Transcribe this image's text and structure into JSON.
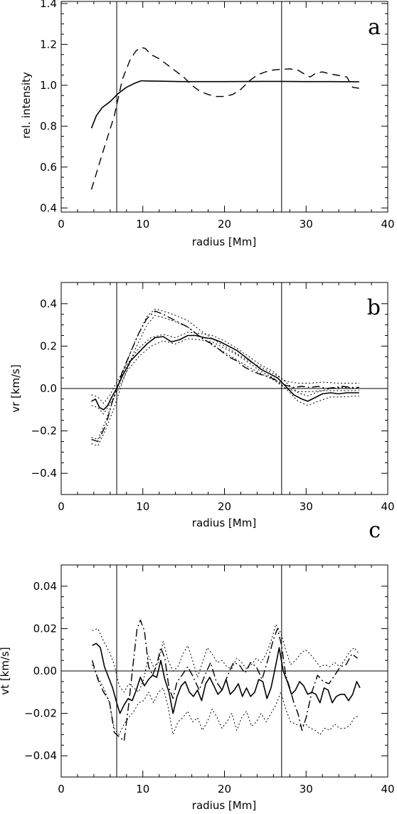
{
  "chart_data": [
    {
      "type": "line",
      "panel_label": "a",
      "xlabel": "radius [Mm]",
      "ylabel": "rel. intensity",
      "xlim": [
        0,
        40
      ],
      "ylim": [
        0.38,
        1.41
      ],
      "xticks": [
        "0",
        "10",
        "20",
        "30",
        "40"
      ],
      "yticks": [
        "0.4",
        "0.6",
        "0.8",
        "1.0",
        "1.2",
        "1.4"
      ],
      "xtick_values": [
        0,
        10,
        20,
        30,
        40
      ],
      "ytick_values": [
        0.4,
        0.6,
        0.8,
        1.0,
        1.2,
        1.4
      ],
      "vlines": [
        6.8,
        27.0
      ],
      "hline": null,
      "series": [
        {
          "style": "solid",
          "x": [
            3.7,
            4.3,
            5,
            6,
            7,
            8,
            9,
            9.8,
            10.5,
            12,
            15,
            20,
            25,
            27,
            30,
            33,
            36.5
          ],
          "y": [
            0.79,
            0.85,
            0.89,
            0.92,
            0.96,
            0.99,
            1.01,
            1.022,
            1.021,
            1.02,
            1.018,
            1.018,
            1.019,
            1.019,
            1.018,
            1.018,
            1.017
          ]
        },
        {
          "style": "dashed",
          "x": [
            3.7,
            5,
            6.5,
            7.5,
            8.5,
            9.2,
            9.8,
            10.3,
            11,
            12,
            13,
            14,
            15,
            16,
            17,
            18,
            19,
            20,
            21,
            22,
            23,
            24,
            25,
            26,
            27,
            28,
            29,
            30,
            30.5,
            31.2,
            32,
            33,
            34,
            35,
            35.7,
            36.5
          ],
          "y": [
            0.49,
            0.66,
            0.85,
            1.03,
            1.13,
            1.17,
            1.185,
            1.18,
            1.15,
            1.13,
            1.1,
            1.07,
            1.04,
            1.0,
            0.97,
            0.955,
            0.945,
            0.945,
            0.955,
            0.98,
            1.02,
            1.05,
            1.065,
            1.075,
            1.078,
            1.08,
            1.074,
            1.05,
            1.04,
            1.06,
            1.065,
            1.055,
            1.048,
            1.04,
            0.99,
            0.985
          ]
        }
      ]
    },
    {
      "type": "line",
      "panel_label": "b",
      "xlabel": "radius [Mm]",
      "ylabel": "vr [km/s]",
      "xlim": [
        0,
        40
      ],
      "ylim": [
        -0.5,
        0.5
      ],
      "xticks": [
        "0",
        "10",
        "20",
        "30",
        "40"
      ],
      "yticks": [
        "−0.4",
        "−0.2",
        "0.0",
        "0.2",
        "0.4"
      ],
      "xtick_values": [
        0,
        10,
        20,
        30,
        40
      ],
      "ytick_values": [
        -0.4,
        -0.2,
        0.0,
        0.2,
        0.4
      ],
      "vlines": [
        6.8,
        27.0
      ],
      "hline": 0,
      "series": [
        {
          "style": "solid",
          "x": [
            3.7,
            4.2,
            4.7,
            5.2,
            5.7,
            6.2,
            6.8,
            7.5,
            8.5,
            9.5,
            10.5,
            11.5,
            12.5,
            13.5,
            14.5,
            15.5,
            16.5,
            17.5,
            18.5,
            19.5,
            20.5,
            21.5,
            22.5,
            23.5,
            24.5,
            25.5,
            26.5,
            27.5,
            28.5,
            29.5,
            30.2,
            31,
            32,
            33,
            34,
            35,
            36.5
          ],
          "y": [
            -0.06,
            -0.05,
            -0.09,
            -0.1,
            -0.08,
            -0.04,
            0.0,
            0.06,
            0.13,
            0.17,
            0.21,
            0.24,
            0.245,
            0.22,
            0.23,
            0.25,
            0.25,
            0.24,
            0.235,
            0.22,
            0.2,
            0.18,
            0.15,
            0.12,
            0.09,
            0.07,
            0.05,
            0.01,
            -0.03,
            -0.05,
            -0.06,
            -0.045,
            -0.025,
            -0.02,
            -0.025,
            -0.02,
            -0.02
          ]
        },
        {
          "style": "dash-dot",
          "x": [
            3.7,
            4.5,
            5.5,
            6.2,
            6.8,
            7.5,
            8.5,
            9.5,
            10.5,
            11.5,
            12.5,
            13.5,
            14.5,
            15.5,
            16.5,
            17.5,
            18.5,
            19.5,
            20.5,
            21.5,
            22.5,
            23.5,
            24.5,
            25.5,
            26.5,
            27.5,
            28.5,
            29.5,
            30.5,
            31.5,
            32.5,
            33.5,
            34.5,
            35.5,
            36.5
          ],
          "y": [
            -0.24,
            -0.25,
            -0.17,
            -0.07,
            0.0,
            0.08,
            0.17,
            0.26,
            0.33,
            0.365,
            0.35,
            0.33,
            0.31,
            0.29,
            0.26,
            0.23,
            0.21,
            0.18,
            0.15,
            0.13,
            0.1,
            0.08,
            0.065,
            0.055,
            0.035,
            0.015,
            0.005,
            0.01,
            0.005,
            0.01,
            0.0,
            0.005,
            0.01,
            0.005,
            0.005
          ]
        },
        {
          "style": "dotted",
          "x": [
            3.7,
            4.5,
            5.2,
            6,
            6.8,
            8,
            9.5,
            11,
            12.5,
            14,
            15.5,
            17,
            18.5,
            20,
            21.5,
            23,
            24.5,
            26,
            27.5,
            29,
            30.2,
            31.5,
            33,
            34.5,
            36.5
          ],
          "y": [
            -0.03,
            -0.04,
            -0.07,
            -0.03,
            0.03,
            0.11,
            0.19,
            0.24,
            0.255,
            0.24,
            0.265,
            0.26,
            0.25,
            0.225,
            0.19,
            0.15,
            0.11,
            0.08,
            0.03,
            -0.02,
            -0.035,
            -0.015,
            0.0,
            0.005,
            0.0
          ]
        },
        {
          "style": "dotted",
          "x": [
            3.7,
            4.5,
            5.2,
            6,
            6.8,
            8,
            9.5,
            11,
            12.5,
            14,
            15.5,
            17,
            18.5,
            20,
            21.5,
            23,
            24.5,
            26,
            27.5,
            29,
            30.2,
            31.5,
            33,
            34.5,
            36.5
          ],
          "y": [
            -0.08,
            -0.09,
            -0.12,
            -0.07,
            -0.02,
            0.08,
            0.15,
            0.2,
            0.225,
            0.21,
            0.235,
            0.23,
            0.22,
            0.19,
            0.16,
            0.12,
            0.08,
            0.05,
            0.0,
            -0.06,
            -0.08,
            -0.06,
            -0.04,
            -0.04,
            -0.035
          ]
        },
        {
          "style": "dotted",
          "x": [
            3.7,
            4.5,
            5.5,
            6.5,
            7.5,
            9,
            10.5,
            11.5,
            12.5,
            14,
            15.5,
            17,
            18.5,
            20,
            21.5,
            23,
            24.5,
            26,
            27.5,
            29,
            30.5,
            32,
            34,
            36.5
          ],
          "y": [
            -0.23,
            -0.24,
            -0.15,
            -0.04,
            0.07,
            0.22,
            0.34,
            0.375,
            0.365,
            0.345,
            0.32,
            0.275,
            0.235,
            0.2,
            0.165,
            0.13,
            0.1,
            0.07,
            0.035,
            0.025,
            0.025,
            0.03,
            0.025,
            0.025
          ]
        },
        {
          "style": "dotted",
          "x": [
            3.7,
            4.5,
            5.5,
            6.5,
            7.5,
            9,
            10.5,
            11.5,
            12.5,
            14,
            15.5,
            17,
            18.5,
            20,
            21.5,
            23,
            24.5,
            26,
            27.5,
            29,
            30.5,
            32,
            34,
            36.5
          ],
          "y": [
            -0.26,
            -0.27,
            -0.19,
            -0.09,
            0.03,
            0.18,
            0.3,
            0.345,
            0.335,
            0.315,
            0.29,
            0.245,
            0.205,
            0.17,
            0.135,
            0.1,
            0.07,
            0.04,
            0.0,
            -0.015,
            -0.015,
            -0.01,
            -0.01,
            -0.01
          ]
        }
      ]
    },
    {
      "type": "line",
      "panel_label": "c",
      "xlabel": "radius [Mm]",
      "ylabel": "vt [km/s]",
      "xlim": [
        0,
        40
      ],
      "ylim": [
        -0.05,
        0.05
      ],
      "xticks": [
        "0",
        "10",
        "20",
        "30",
        "40"
      ],
      "yticks": [
        "−0.04",
        "−0.02",
        "0.00",
        "0.02",
        "0.04"
      ],
      "xtick_values": [
        0,
        10,
        20,
        30,
        40
      ],
      "ytick_values": [
        -0.04,
        -0.02,
        0.0,
        0.02,
        0.04
      ],
      "vlines": [
        6.8,
        27.0
      ],
      "hline": 0,
      "series": [
        {
          "style": "solid",
          "x": [
            3.8,
            4.3,
            4.8,
            5.3,
            5.8,
            6.3,
            6.8,
            7.2,
            7.7,
            8.2,
            8.7,
            9.2,
            9.7,
            10.2,
            10.7,
            11.2,
            11.7,
            12.2,
            12.7,
            13.2,
            13.7,
            14.2,
            14.7,
            15.2,
            15.7,
            16.2,
            16.7,
            17.2,
            17.7,
            18.2,
            18.7,
            19.2,
            19.7,
            20.2,
            20.7,
            21.2,
            21.7,
            22.2,
            22.7,
            23.2,
            23.7,
            24.2,
            24.7,
            25.2,
            25.7,
            26.2,
            26.7,
            27.2,
            27.7,
            28.2,
            28.7,
            29.2,
            29.7,
            30.2,
            30.7,
            31.2,
            31.7,
            32.2,
            32.7,
            33.2,
            33.7,
            34.2,
            34.7,
            35.2,
            35.7,
            36.2,
            36.6
          ],
          "y": [
            0.012,
            0.013,
            0.011,
            0.002,
            -0.003,
            -0.008,
            -0.015,
            -0.02,
            -0.016,
            -0.013,
            -0.014,
            -0.009,
            -0.003,
            -0.007,
            -0.004,
            -0.002,
            -0.003,
            0.005,
            -0.004,
            -0.01,
            -0.02,
            -0.012,
            -0.007,
            -0.005,
            -0.01,
            -0.012,
            -0.009,
            -0.014,
            -0.006,
            -0.003,
            -0.007,
            -0.011,
            -0.009,
            -0.004,
            -0.011,
            -0.009,
            -0.006,
            -0.012,
            -0.008,
            -0.012,
            -0.01,
            -0.004,
            -0.005,
            -0.013,
            -0.008,
            0.001,
            0.011,
            0.0,
            -0.005,
            -0.011,
            -0.009,
            -0.005,
            -0.007,
            -0.011,
            -0.01,
            -0.011,
            -0.015,
            -0.008,
            -0.009,
            -0.015,
            -0.012,
            -0.011,
            -0.011,
            -0.014,
            -0.011,
            -0.005,
            -0.008
          ]
        },
        {
          "style": "dash-dot",
          "x": [
            3.8,
            4.5,
            5.2,
            5.9,
            6.5,
            7.1,
            7.7,
            8.3,
            8.8,
            9.3,
            9.7,
            10.2,
            10.7,
            11.2,
            11.7,
            12.2,
            12.7,
            13.2,
            13.7,
            14.2,
            14.8,
            15.5,
            16.2,
            16.9,
            17.6,
            18.3,
            19,
            19.7,
            20.4,
            21.1,
            21.8,
            22.5,
            23.2,
            23.9,
            24.6,
            25.3,
            26,
            26.5,
            27,
            27.5,
            28,
            28.5,
            29,
            29.5,
            30,
            30.7,
            31.4,
            32.1,
            32.8,
            33.5,
            34.2,
            34.9,
            35.6,
            36.3
          ],
          "y": [
            0.005,
            -0.004,
            -0.01,
            -0.014,
            -0.029,
            -0.031,
            -0.033,
            -0.015,
            0.003,
            0.02,
            0.024,
            0.019,
            0.002,
            -0.002,
            0.003,
            0.011,
            0.006,
            -0.008,
            -0.013,
            -0.005,
            -0.002,
            0.002,
            -0.003,
            -0.009,
            -0.002,
            0.004,
            -0.005,
            -0.009,
            -0.002,
            0.004,
            0.003,
            -0.001,
            0.004,
            0.002,
            -0.004,
            0.005,
            0.015,
            0.02,
            0.012,
            -0.002,
            -0.008,
            -0.015,
            -0.02,
            -0.028,
            -0.022,
            -0.01,
            -0.002,
            -0.005,
            -0.006,
            -0.002,
            0.002,
            0.003,
            0.008,
            0.006
          ]
        },
        {
          "style": "dotted",
          "x": [
            3.8,
            4.5,
            5.2,
            5.9,
            6.5,
            7.1,
            7.7,
            8.3,
            8.9,
            9.5,
            10.1,
            10.7,
            11.3,
            11.9,
            12.5,
            13.1,
            13.7,
            14.3,
            14.9,
            15.5,
            16.1,
            16.7,
            17.3,
            17.9,
            18.5,
            19.1,
            19.7,
            20.3,
            20.9,
            21.5,
            22.1,
            22.7,
            23.3,
            23.9,
            24.5,
            25.1,
            25.7,
            26.3,
            26.9,
            27.5,
            28.1,
            28.7,
            29.3,
            29.9,
            30.5,
            31.1,
            31.7,
            32.3,
            32.9,
            33.5,
            34.1,
            34.7,
            35.3,
            35.9,
            36.5
          ],
          "y": [
            0.019,
            0.02,
            0.014,
            0.009,
            0.003,
            -0.007,
            -0.01,
            -0.006,
            -0.008,
            -0.01,
            -0.004,
            0.007,
            0.002,
            0.004,
            0.014,
            0.005,
            0.0,
            0.002,
            0.008,
            0.012,
            0.005,
            -0.003,
            0.004,
            0.011,
            0.008,
            0.004,
            0.005,
            0.002,
            0.001,
            0.006,
            0.004,
            0.001,
            0.003,
            0.006,
            0.004,
            0.008,
            0.014,
            0.022,
            0.018,
            0.01,
            0.003,
            0.005,
            0.008,
            0.01,
            0.008,
            0.005,
            0.002,
            0.003,
            0.002,
            0.004,
            0.002,
            0.005,
            0.009,
            0.011,
            0.008
          ]
        },
        {
          "style": "dotted",
          "x": [
            3.8,
            4.5,
            5.2,
            5.9,
            6.5,
            7.1,
            7.7,
            8.3,
            8.9,
            9.5,
            10.1,
            10.7,
            11.3,
            11.9,
            12.5,
            13.1,
            13.7,
            14.3,
            14.9,
            15.5,
            16.1,
            16.7,
            17.3,
            17.9,
            18.5,
            19.1,
            19.7,
            20.3,
            20.9,
            21.5,
            22.1,
            22.7,
            23.3,
            23.9,
            24.5,
            25.1,
            25.7,
            26.3,
            26.9,
            27.5,
            28.1,
            28.7,
            29.3,
            29.9,
            30.5,
            31.1,
            31.7,
            32.3,
            32.9,
            33.5,
            34.1,
            34.7,
            35.3,
            35.9,
            36.5
          ],
          "y": [
            0.003,
            -0.003,
            -0.008,
            -0.015,
            -0.027,
            -0.03,
            -0.025,
            -0.022,
            -0.019,
            -0.015,
            -0.014,
            -0.01,
            -0.015,
            -0.01,
            -0.008,
            -0.017,
            -0.03,
            -0.024,
            -0.022,
            -0.019,
            -0.024,
            -0.022,
            -0.028,
            -0.024,
            -0.018,
            -0.022,
            -0.027,
            -0.024,
            -0.02,
            -0.028,
            -0.022,
            -0.019,
            -0.026,
            -0.024,
            -0.02,
            -0.024,
            -0.02,
            -0.016,
            -0.01,
            -0.018,
            -0.024,
            -0.025,
            -0.026,
            -0.025,
            -0.027,
            -0.028,
            -0.03,
            -0.027,
            -0.028,
            -0.025,
            -0.027,
            -0.027,
            -0.026,
            -0.022,
            -0.021
          ]
        }
      ]
    }
  ]
}
